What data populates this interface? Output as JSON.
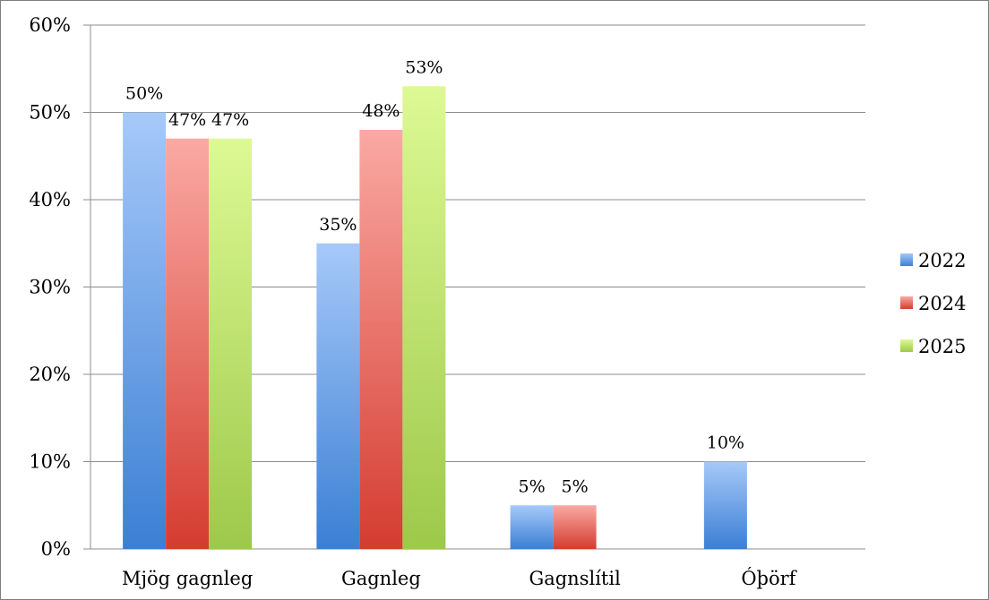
{
  "chart_data": {
    "type": "bar",
    "categories": [
      "Mjög gagnleg",
      "Gagnleg",
      "Gagnslítil",
      "Óþörf"
    ],
    "series": [
      {
        "name": "2022",
        "values": [
          50,
          35,
          5,
          10
        ],
        "labels": [
          "50%",
          "35%",
          "5%",
          "10%"
        ]
      },
      {
        "name": "2024",
        "values": [
          47,
          48,
          5,
          null
        ],
        "labels": [
          "47%",
          "48%",
          "5%",
          ""
        ]
      },
      {
        "name": "2025",
        "values": [
          47,
          53,
          null,
          null
        ],
        "labels": [
          "47%",
          "53%",
          "",
          ""
        ]
      }
    ],
    "yticks": [
      "0%",
      "10%",
      "20%",
      "30%",
      "40%",
      "50%",
      "60%"
    ],
    "ylim": [
      0,
      60
    ],
    "ylabel": "",
    "xlabel": "",
    "title": "",
    "grid": true,
    "legend_position": "right",
    "colors": {
      "2022": {
        "top": "#a6c9f9",
        "bottom": "#3b7fd4"
      },
      "2024": {
        "top": "#faa9a3",
        "bottom": "#d43c30"
      },
      "2025": {
        "top": "#ddf994",
        "bottom": "#9dc94a"
      }
    }
  }
}
